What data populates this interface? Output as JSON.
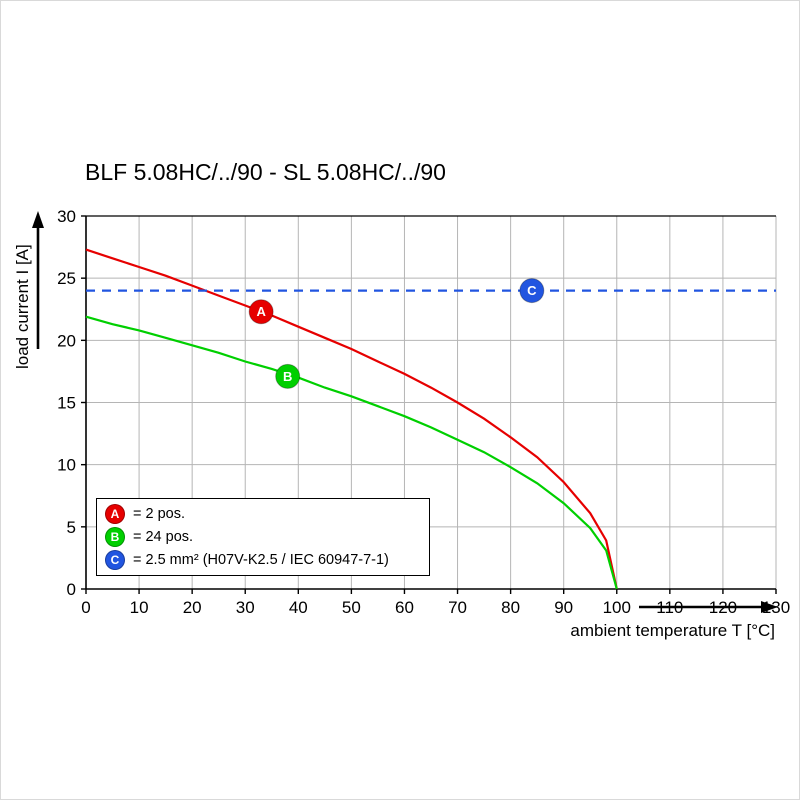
{
  "chart_data": {
    "type": "line",
    "title": "BLF 5.08HC/../90 - SL 5.08HC/../90",
    "xlabel": "ambient temperature T [°C]",
    "ylabel": "load current I [A]",
    "xlim": [
      0,
      130
    ],
    "ylim": [
      0,
      30
    ],
    "xticks": [
      0,
      10,
      20,
      30,
      40,
      50,
      60,
      70,
      80,
      90,
      100,
      110,
      120,
      130
    ],
    "yticks": [
      0,
      5,
      10,
      15,
      20,
      25,
      30
    ],
    "grid": true,
    "grid_color": "#b5b5b5",
    "axis_color": "#000000",
    "legend_position": "lower left",
    "series": [
      {
        "name": "A",
        "legend_label": "= 2 pos.",
        "color": "#e60000",
        "line_style": "solid",
        "x": [
          0,
          5,
          10,
          15,
          20,
          25,
          30,
          35,
          40,
          45,
          50,
          55,
          60,
          65,
          70,
          75,
          80,
          85,
          90,
          95,
          98,
          100
        ],
        "y": [
          27.3,
          26.6,
          25.9,
          25.2,
          24.4,
          23.6,
          22.8,
          22.0,
          21.1,
          20.2,
          19.3,
          18.3,
          17.3,
          16.2,
          15.0,
          13.7,
          12.2,
          10.6,
          8.6,
          6.1,
          3.9,
          0
        ],
        "marker": {
          "x": 33,
          "y": 22.3,
          "label": "A"
        }
      },
      {
        "name": "B",
        "legend_label": "= 24 pos.",
        "color": "#00cf00",
        "line_style": "solid",
        "x": [
          0,
          5,
          10,
          15,
          20,
          25,
          30,
          35,
          40,
          45,
          50,
          55,
          60,
          65,
          70,
          75,
          80,
          85,
          90,
          95,
          98,
          100
        ],
        "y": [
          21.9,
          21.3,
          20.8,
          20.2,
          19.6,
          19.0,
          18.3,
          17.7,
          17.0,
          16.2,
          15.5,
          14.7,
          13.9,
          13.0,
          12.0,
          11.0,
          9.8,
          8.5,
          6.9,
          4.9,
          3.1,
          0
        ],
        "marker": {
          "x": 38,
          "y": 17.1,
          "label": "B"
        }
      },
      {
        "name": "C",
        "legend_label": "= 2.5 mm² (H07V-K2.5 / IEC 60947-7-1)",
        "color": "#2155e0",
        "line_style": "dashed",
        "x": [
          0,
          130
        ],
        "y": [
          24,
          24
        ],
        "marker": {
          "x": 84,
          "y": 24,
          "label": "C"
        }
      }
    ]
  }
}
